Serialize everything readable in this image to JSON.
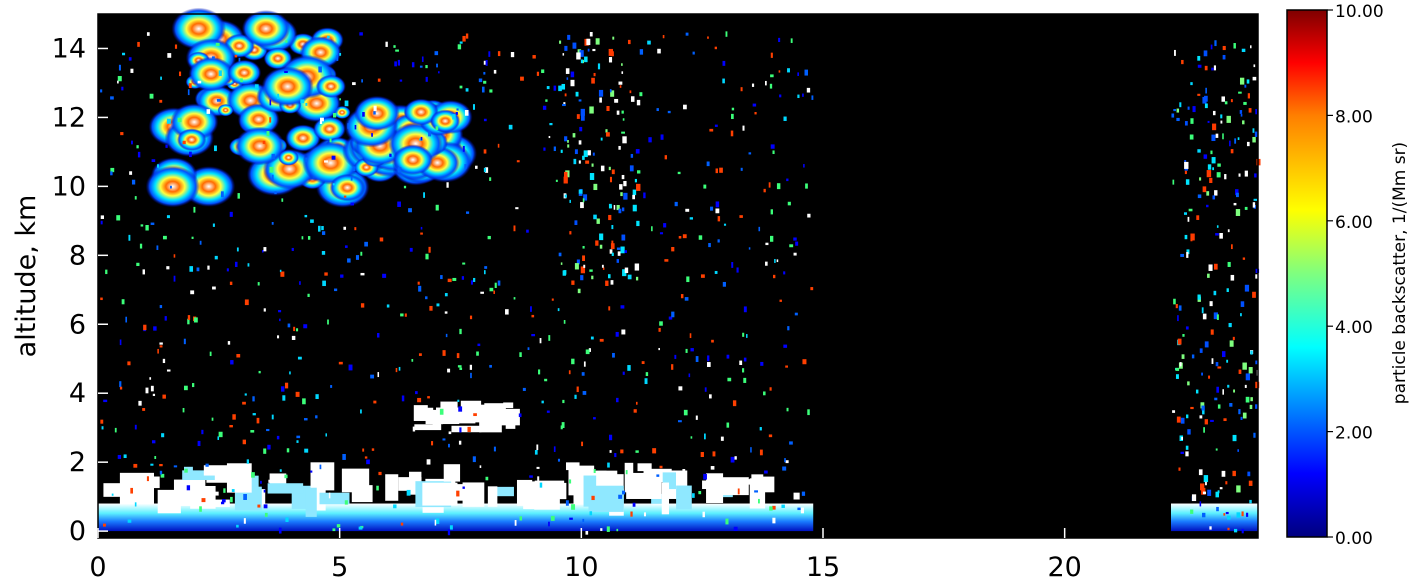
{
  "chart_data": [
    {
      "type": "heatmap",
      "title": "",
      "xlabel": "",
      "ylabel": "altitude, km",
      "xlim": [
        0,
        24
      ],
      "ylim": [
        -0.2,
        15
      ],
      "x_ticks": [
        0,
        5,
        10,
        15,
        20
      ],
      "x_tick_labels": [
        "0",
        "5",
        "10",
        "15",
        "20"
      ],
      "y_ticks": [
        0,
        2,
        4,
        6,
        8,
        10,
        12,
        14
      ],
      "y_tick_labels": [
        "0",
        "2",
        "4",
        "6",
        "8",
        "10",
        "12",
        "14"
      ],
      "no_data_x_range": [
        14.8,
        22.2
      ],
      "features": [
        {
          "kind": "boundary-layer",
          "x": [
            0,
            14.8
          ],
          "y": [
            0,
            0.8
          ],
          "value": 6
        },
        {
          "kind": "boundary-layer",
          "x": [
            22.2,
            24
          ],
          "y": [
            0,
            0.8
          ],
          "value": 6
        },
        {
          "kind": "boundary-layer-top",
          "x": [
            0,
            14.8
          ],
          "y": [
            0.8,
            2.0
          ],
          "value": 10
        },
        {
          "kind": "cloud",
          "x": [
            6.5,
            8.8
          ],
          "y": [
            2.8,
            3.8
          ],
          "value": 10
        },
        {
          "kind": "cirrus",
          "x": [
            1.5,
            5.2
          ],
          "y": [
            9.8,
            14.6
          ],
          "value": 7
        },
        {
          "kind": "cirrus",
          "x": [
            5.5,
            7.5
          ],
          "y": [
            10.5,
            12.2
          ],
          "value": 5
        },
        {
          "kind": "scattered",
          "x": [
            9.5,
            11.2
          ],
          "y": [
            7,
            14.5
          ],
          "value": 4
        },
        {
          "kind": "scattered",
          "x": [
            22.3,
            24
          ],
          "y": [
            1,
            14
          ],
          "value": 3
        }
      ]
    },
    {
      "type": "colorbar",
      "label": "particle backscatter, 1/(Mm sr)",
      "range": [
        0,
        10
      ],
      "ticks": [
        0,
        2,
        4,
        6,
        8,
        10
      ],
      "tick_labels": [
        "0.00",
        "2.00",
        "4.00",
        "6.00",
        "8.00",
        "10.00"
      ],
      "colormap": [
        "#00007f",
        "#0000ff",
        "#007fff",
        "#00ffff",
        "#7fff7f",
        "#ffff00",
        "#ff7f00",
        "#ff0000",
        "#7f0000"
      ]
    }
  ]
}
